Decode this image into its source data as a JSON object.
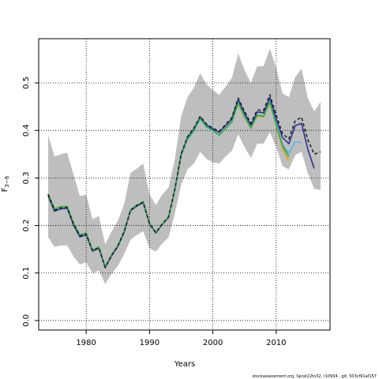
{
  "chart_data": {
    "type": "line",
    "xlabel": "Years",
    "ylabel": "F",
    "ylabel_sub": "3−6",
    "xlim": [
      1972.5,
      2018.5
    ],
    "ylim": [
      -0.02,
      0.593
    ],
    "x_ticks": [
      1980,
      1990,
      2000,
      2010
    ],
    "y_ticks": [
      0.0,
      0.1,
      0.2,
      0.3,
      0.4,
      0.5
    ],
    "grid": "dotted",
    "footer": "stockassessment.org, Sprat22to32, r10934 , git: 503cf91af157",
    "band": {
      "x": [
        1974,
        1975,
        1976,
        1977,
        1978,
        1979,
        1980,
        1981,
        1982,
        1983,
        1984,
        1985,
        1986,
        1987,
        1988,
        1989,
        1990,
        1991,
        1992,
        1993,
        1994,
        1995,
        1996,
        1997,
        1998,
        1999,
        2000,
        2001,
        2002,
        2003,
        2004,
        2005,
        2006,
        2007,
        2008,
        2009,
        2010,
        2011,
        2012,
        2013,
        2014,
        2015,
        2016,
        2017
      ],
      "upper": [
        0.39,
        0.345,
        0.35,
        0.353,
        0.307,
        0.262,
        0.265,
        0.213,
        0.22,
        0.16,
        0.187,
        0.21,
        0.245,
        0.31,
        0.32,
        0.33,
        0.265,
        0.243,
        0.265,
        0.28,
        0.34,
        0.43,
        0.47,
        0.49,
        0.52,
        0.497,
        0.485,
        0.475,
        0.492,
        0.51,
        0.562,
        0.527,
        0.5,
        0.535,
        0.535,
        0.572,
        0.532,
        0.478,
        0.47,
        0.512,
        0.53,
        0.468,
        0.44,
        0.46
      ],
      "lower": [
        0.175,
        0.155,
        0.158,
        0.158,
        0.135,
        0.118,
        0.122,
        0.1,
        0.105,
        0.077,
        0.098,
        0.115,
        0.14,
        0.17,
        0.18,
        0.188,
        0.152,
        0.145,
        0.162,
        0.175,
        0.225,
        0.285,
        0.318,
        0.33,
        0.355,
        0.34,
        0.333,
        0.33,
        0.345,
        0.357,
        0.392,
        0.365,
        0.342,
        0.372,
        0.372,
        0.396,
        0.365,
        0.325,
        0.318,
        0.348,
        0.355,
        0.31,
        0.277,
        0.275
      ]
    },
    "series": [
      {
        "color": "#e69f00",
        "x": [
          1974,
          1975,
          1976,
          1977,
          1978,
          1979,
          1980,
          1981,
          1982,
          1983,
          1984,
          1985,
          1986,
          1987,
          1988,
          1989,
          1990,
          1991,
          1992,
          1993,
          1994,
          1995,
          1996,
          1997,
          1998,
          1999,
          2000,
          2001,
          2002,
          2003,
          2004,
          2005,
          2006,
          2007,
          2008,
          2009,
          2010,
          2011,
          2012
        ],
        "values": [
          0.267,
          0.235,
          0.24,
          0.24,
          0.205,
          0.18,
          0.185,
          0.148,
          0.155,
          0.113,
          0.138,
          0.158,
          0.188,
          0.233,
          0.243,
          0.25,
          0.205,
          0.185,
          0.203,
          0.218,
          0.275,
          0.348,
          0.382,
          0.4,
          0.425,
          0.408,
          0.4,
          0.39,
          0.403,
          0.418,
          0.456,
          0.428,
          0.404,
          0.43,
          0.428,
          0.458,
          0.41,
          0.362,
          0.336
        ]
      },
      {
        "color": "#56b4e9",
        "x": [
          1974,
          1975,
          1976,
          1977,
          1978,
          1979,
          1980,
          1981,
          1982,
          1983,
          1984,
          1985,
          1986,
          1987,
          1988,
          1989,
          1990,
          1991,
          1992,
          1993,
          1994,
          1995,
          1996,
          1997,
          1998,
          1999,
          2000,
          2001,
          2002,
          2003,
          2004,
          2005,
          2006,
          2007,
          2008,
          2009,
          2010,
          2011,
          2012,
          2013,
          2014
        ],
        "values": [
          0.265,
          0.234,
          0.239,
          0.239,
          0.204,
          0.179,
          0.184,
          0.147,
          0.154,
          0.112,
          0.137,
          0.157,
          0.187,
          0.232,
          0.242,
          0.249,
          0.204,
          0.184,
          0.202,
          0.217,
          0.274,
          0.347,
          0.381,
          0.399,
          0.424,
          0.407,
          0.399,
          0.391,
          0.404,
          0.419,
          0.458,
          0.429,
          0.406,
          0.432,
          0.43,
          0.461,
          0.415,
          0.37,
          0.352,
          0.376,
          0.374
        ]
      },
      {
        "color": "#2e2e9a",
        "x": [
          1974,
          1975,
          1976,
          1977,
          1978,
          1979,
          1980,
          1981,
          1982,
          1983,
          1984,
          1985,
          1986,
          1987,
          1988,
          1989,
          1990,
          1991,
          1992,
          1993,
          1994,
          1995,
          1996,
          1997,
          1998,
          1999,
          2000,
          2001,
          2002,
          2003,
          2004,
          2005,
          2006,
          2007,
          2008,
          2009,
          2010,
          2011,
          2012,
          2013,
          2014,
          2015,
          2016
        ],
        "values": [
          0.262,
          0.23,
          0.235,
          0.236,
          0.201,
          0.176,
          0.18,
          0.146,
          0.152,
          0.111,
          0.136,
          0.156,
          0.186,
          0.231,
          0.241,
          0.248,
          0.203,
          0.184,
          0.202,
          0.217,
          0.276,
          0.35,
          0.385,
          0.403,
          0.428,
          0.411,
          0.403,
          0.396,
          0.41,
          0.424,
          0.465,
          0.436,
          0.411,
          0.439,
          0.437,
          0.469,
          0.424,
          0.385,
          0.372,
          0.41,
          0.415,
          0.36,
          0.32
        ]
      },
      {
        "color": "#22b14c",
        "x": [
          1974,
          1975,
          1976,
          1977,
          1978,
          1979,
          1980,
          1981,
          1982,
          1983,
          1984,
          1985,
          1986,
          1987,
          1988,
          1989,
          1990,
          1991,
          1992,
          1993,
          1994,
          1995,
          1996,
          1997,
          1998,
          1999,
          2000,
          2001,
          2002,
          2003,
          2004,
          2005,
          2006,
          2007,
          2008,
          2009,
          2010,
          2011,
          2012
        ],
        "values": [
          0.266,
          0.235,
          0.239,
          0.24,
          0.205,
          0.18,
          0.184,
          0.148,
          0.155,
          0.113,
          0.138,
          0.158,
          0.188,
          0.233,
          0.243,
          0.25,
          0.205,
          0.185,
          0.203,
          0.218,
          0.275,
          0.348,
          0.382,
          0.4,
          0.425,
          0.408,
          0.4,
          0.39,
          0.404,
          0.418,
          0.458,
          0.43,
          0.405,
          0.432,
          0.43,
          0.46,
          0.412,
          0.368,
          0.345
        ]
      },
      {
        "color": "#222222",
        "dashed": true,
        "x": [
          1974,
          1975,
          1976,
          1977,
          1978,
          1979,
          1980,
          1981,
          1982,
          1983,
          1984,
          1985,
          1986,
          1987,
          1988,
          1989,
          1990,
          1991,
          1992,
          1993,
          1994,
          1995,
          1996,
          1997,
          1998,
          1999,
          2000,
          2001,
          2002,
          2003,
          2004,
          2005,
          2006,
          2007,
          2008,
          2009,
          2010,
          2011,
          2012,
          2013,
          2014,
          2015,
          2016,
          2017
        ],
        "values": [
          0.265,
          0.232,
          0.237,
          0.238,
          0.203,
          0.178,
          0.182,
          0.147,
          0.153,
          0.112,
          0.137,
          0.157,
          0.187,
          0.232,
          0.242,
          0.249,
          0.204,
          0.185,
          0.203,
          0.218,
          0.277,
          0.351,
          0.387,
          0.405,
          0.43,
          0.413,
          0.405,
          0.398,
          0.412,
          0.427,
          0.468,
          0.44,
          0.415,
          0.443,
          0.442,
          0.475,
          0.432,
          0.393,
          0.382,
          0.42,
          0.428,
          0.38,
          0.35,
          0.355
        ]
      }
    ]
  }
}
